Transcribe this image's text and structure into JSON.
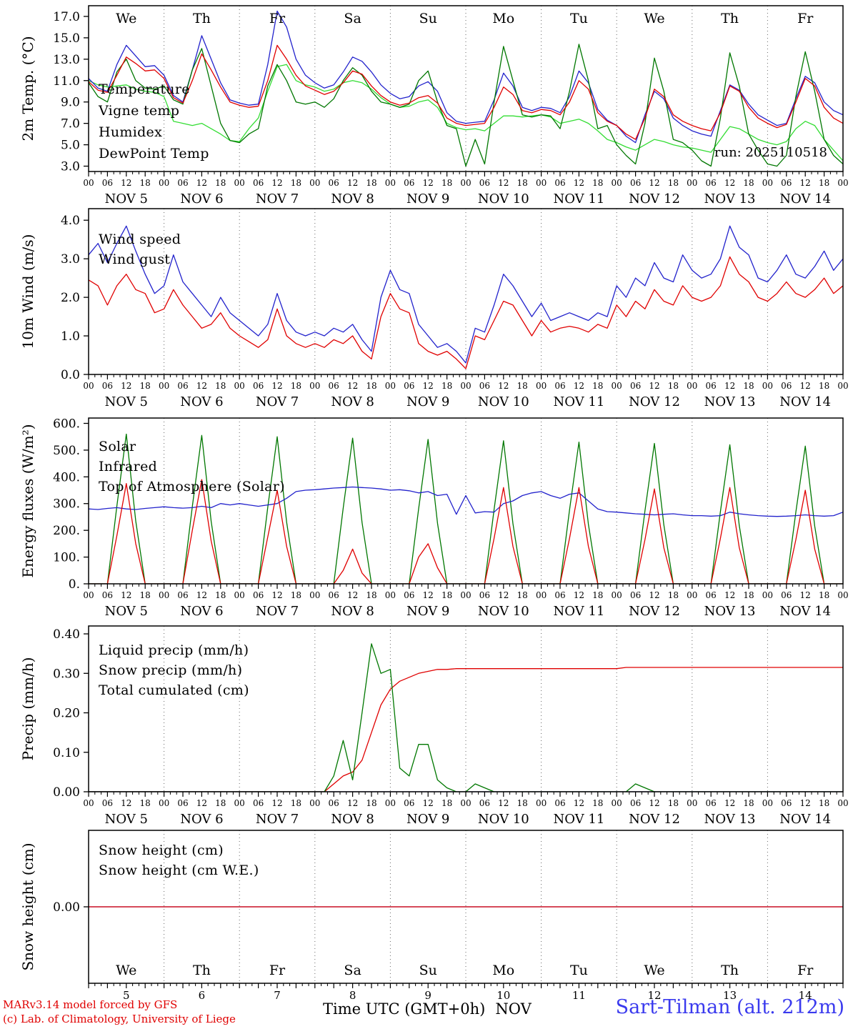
{
  "colors": {
    "red": "#e00000",
    "blue": "#2222cc",
    "dark_green": "#007700",
    "light_green": "#33dd33",
    "station_blue": "#3a3aee"
  },
  "footer": {
    "credit_line1": "MARv3.14 model forced by GFS",
    "credit_line2": "(c) Lab. of Climatology, University of Liege",
    "xaxis_title": "Time UTC (GMT+0h)",
    "month_label": "NOV",
    "station": "Sart-Tilman (alt. 212m)"
  },
  "x_axis": {
    "hours_total": 240,
    "step_hours": 3,
    "hour_label_cycle": [
      "00",
      "06",
      "12",
      "18"
    ],
    "day_labels": [
      "NOV  5",
      "NOV  6",
      "NOV  7",
      "NOV  8",
      "NOV  9",
      "NOV 10",
      "NOV 11",
      "NOV 12",
      "NOV 13",
      "NOV 14"
    ],
    "day_names": [
      "We",
      "Th",
      "Fr",
      "Sa",
      "Su",
      "Mo",
      "Tu",
      "We",
      "Th",
      "Fr"
    ],
    "weekend_days": [
      3,
      4
    ],
    "day_numbers": [
      "5",
      "6",
      "7",
      "8",
      "9",
      "10",
      "11",
      "12",
      "13",
      "14"
    ]
  },
  "chart_data": [
    {
      "type": "line",
      "ylabel": "2m Temp. (°C)",
      "ylim": [
        2.5,
        18.0
      ],
      "ytick_values": [
        3,
        5,
        7,
        9,
        11,
        13,
        15,
        17
      ],
      "ytick_labels": [
        "3.0",
        "5.0",
        "7.0",
        "9.0",
        "11.0",
        "13.0",
        "15.0",
        "17.0"
      ],
      "series": [
        {
          "name": "Temperature",
          "color": "#e00000",
          "values": [
            10.9,
            10.1,
            9.9,
            11.5,
            13.2,
            12.6,
            11.9,
            12.0,
            11.2,
            9.4,
            8.9,
            11.0,
            13.5,
            12.0,
            10.4,
            9.0,
            8.7,
            8.5,
            8.6,
            11.0,
            14.3,
            13.0,
            11.5,
            10.5,
            10.1,
            9.7,
            10.0,
            10.8,
            11.9,
            11.6,
            10.5,
            9.6,
            9.0,
            8.7,
            8.9,
            9.4,
            9.6,
            8.9,
            7.5,
            7.0,
            6.8,
            6.9,
            7.0,
            8.5,
            10.4,
            9.7,
            8.2,
            8.0,
            8.3,
            8.2,
            7.8,
            9.0,
            11.0,
            10.2,
            8.0,
            7.2,
            6.8,
            6.0,
            5.5,
            7.5,
            10.2,
            9.5,
            7.8,
            7.2,
            6.8,
            6.5,
            6.3,
            8.0,
            10.5,
            10.0,
            8.5,
            7.5,
            7.0,
            6.6,
            6.9,
            9.0,
            11.2,
            10.5,
            8.5,
            7.5,
            7.0
          ]
        },
        {
          "name": "Vigne temp",
          "color": "#007700",
          "values": [
            10.8,
            9.5,
            9.0,
            11.8,
            13.0,
            11.0,
            10.3,
            10.2,
            10.5,
            9.2,
            8.8,
            12.0,
            14.0,
            10.5,
            7.0,
            5.4,
            5.2,
            6.0,
            6.5,
            10.5,
            12.5,
            11.0,
            9.0,
            8.8,
            9.0,
            8.5,
            9.3,
            11.0,
            12.2,
            11.5,
            10.0,
            9.0,
            8.8,
            8.5,
            8.8,
            11.0,
            11.9,
            9.0,
            6.8,
            6.5,
            3.0,
            5.5,
            3.2,
            9.0,
            14.2,
            11.0,
            7.8,
            7.6,
            7.8,
            7.7,
            6.5,
            10.0,
            14.4,
            11.0,
            6.5,
            6.8,
            5.0,
            4.0,
            3.2,
            7.0,
            13.1,
            10.0,
            5.5,
            5.2,
            4.5,
            3.5,
            3.0,
            7.5,
            13.6,
            10.5,
            6.0,
            4.5,
            3.2,
            3.0,
            4.0,
            9.5,
            13.7,
            10.0,
            5.5,
            4.0,
            3.2
          ]
        },
        {
          "name": "Humidex",
          "color": "#2222cc",
          "values": [
            11.2,
            10.3,
            10.0,
            12.5,
            14.3,
            13.3,
            12.3,
            12.4,
            11.5,
            9.6,
            9.0,
            12.0,
            15.2,
            13.0,
            10.8,
            9.2,
            8.9,
            8.7,
            8.8,
            12.5,
            17.5,
            16.0,
            13.0,
            11.5,
            10.8,
            10.3,
            10.6,
            11.8,
            13.2,
            12.8,
            11.8,
            10.6,
            9.8,
            9.3,
            9.5,
            10.5,
            10.9,
            10.0,
            8.0,
            7.2,
            7.0,
            7.1,
            7.2,
            9.2,
            11.7,
            10.5,
            8.5,
            8.2,
            8.5,
            8.4,
            8.0,
            9.5,
            11.9,
            10.8,
            8.3,
            7.3,
            6.8,
            5.8,
            5.2,
            7.8,
            10.0,
            9.3,
            7.5,
            6.8,
            6.3,
            6.0,
            5.8,
            8.2,
            10.6,
            10.1,
            8.8,
            7.8,
            7.3,
            6.8,
            7.0,
            9.3,
            11.4,
            10.8,
            9.0,
            8.2,
            7.8
          ]
        },
        {
          "name": "DewPoint Temp",
          "color": "#33dd33",
          "values": [
            11.0,
            10.6,
            10.4,
            10.5,
            10.6,
            10.2,
            10.0,
            9.9,
            9.5,
            7.2,
            7.0,
            6.8,
            7.0,
            6.5,
            6.0,
            5.4,
            5.3,
            6.5,
            7.5,
            10.0,
            12.3,
            12.5,
            11.0,
            10.6,
            10.4,
            10.0,
            10.2,
            10.8,
            11.0,
            10.8,
            10.2,
            9.4,
            8.8,
            8.5,
            8.6,
            9.0,
            9.2,
            8.5,
            7.0,
            6.6,
            6.4,
            6.5,
            6.3,
            7.0,
            7.7,
            7.7,
            7.6,
            7.7,
            7.8,
            7.6,
            7.0,
            7.2,
            7.4,
            7.0,
            6.3,
            5.5,
            5.2,
            4.8,
            4.5,
            5.0,
            5.5,
            5.3,
            5.0,
            4.8,
            4.7,
            4.5,
            4.3,
            5.5,
            6.7,
            6.5,
            6.0,
            5.5,
            5.2,
            5.0,
            5.3,
            6.5,
            7.2,
            6.8,
            5.5,
            4.5,
            3.5
          ]
        }
      ],
      "annotations": [
        {
          "text": "run: 2025110518",
          "color": "#000000",
          "align": "right",
          "x_hour": 235,
          "y_value": 3.9
        }
      ]
    },
    {
      "type": "line",
      "ylabel": "10m Wind (m/s)",
      "ylim": [
        0,
        4.3
      ],
      "ytick_values": [
        0,
        1,
        2,
        3,
        4
      ],
      "ytick_labels": [
        "0.0",
        "1.0",
        "2.0",
        "3.0",
        "4.0"
      ],
      "series": [
        {
          "name": "Wind speed",
          "color": "#e00000",
          "values": [
            2.45,
            2.3,
            1.8,
            2.3,
            2.6,
            2.2,
            2.1,
            1.6,
            1.7,
            2.2,
            1.8,
            1.5,
            1.2,
            1.3,
            1.6,
            1.2,
            1.0,
            0.85,
            0.7,
            0.9,
            1.7,
            1.0,
            0.8,
            0.7,
            0.8,
            0.7,
            0.9,
            0.8,
            1.0,
            0.6,
            0.4,
            1.5,
            2.1,
            1.7,
            1.6,
            0.8,
            0.6,
            0.5,
            0.6,
            0.4,
            0.15,
            1.0,
            0.9,
            1.4,
            1.9,
            1.8,
            1.4,
            1.0,
            1.4,
            1.1,
            1.2,
            1.25,
            1.2,
            1.1,
            1.3,
            1.2,
            1.8,
            1.5,
            1.9,
            1.7,
            2.2,
            1.9,
            1.8,
            2.3,
            2.0,
            1.9,
            2.0,
            2.3,
            3.05,
            2.6,
            2.4,
            2.0,
            1.9,
            2.1,
            2.4,
            2.1,
            2.0,
            2.2,
            2.5,
            2.1,
            2.3
          ]
        },
        {
          "name": "Wind gust",
          "color": "#2222cc",
          "values": [
            3.1,
            3.4,
            2.9,
            3.4,
            3.85,
            3.2,
            2.6,
            2.1,
            2.3,
            3.1,
            2.4,
            2.1,
            1.8,
            1.5,
            2.0,
            1.6,
            1.4,
            1.2,
            1.0,
            1.3,
            2.1,
            1.4,
            1.1,
            1.0,
            1.1,
            1.0,
            1.2,
            1.1,
            1.3,
            0.9,
            0.6,
            2.0,
            2.7,
            2.2,
            2.1,
            1.3,
            1.0,
            0.7,
            0.8,
            0.6,
            0.3,
            1.2,
            1.1,
            1.8,
            2.6,
            2.3,
            1.9,
            1.5,
            1.85,
            1.4,
            1.5,
            1.6,
            1.5,
            1.4,
            1.6,
            1.5,
            2.3,
            2.0,
            2.5,
            2.3,
            2.9,
            2.5,
            2.4,
            3.1,
            2.7,
            2.5,
            2.6,
            3.0,
            3.85,
            3.3,
            3.1,
            2.5,
            2.4,
            2.7,
            3.1,
            2.6,
            2.5,
            2.8,
            3.2,
            2.7,
            3.0
          ]
        }
      ],
      "annotations": []
    },
    {
      "type": "line",
      "ylabel": "Energy fluxes (W/m²)",
      "ylim": [
        0,
        620
      ],
      "ytick_values": [
        0,
        100,
        200,
        300,
        400,
        500,
        600
      ],
      "ytick_labels": [
        "0.",
        "100.",
        "200.",
        "300.",
        "400.",
        "500.",
        "600."
      ],
      "series": [
        {
          "name": "Solar",
          "color": "#e00000",
          "values": [
            0,
            0,
            0,
            180,
            375,
            150,
            0,
            0,
            0,
            0,
            0,
            200,
            390,
            160,
            0,
            0,
            0,
            0,
            0,
            175,
            350,
            140,
            0,
            0,
            0,
            0,
            0,
            50,
            130,
            40,
            0,
            0,
            0,
            0,
            0,
            100,
            150,
            60,
            0,
            0,
            0,
            0,
            0,
            170,
            360,
            140,
            0,
            0,
            0,
            0,
            0,
            170,
            360,
            140,
            0,
            0,
            0,
            0,
            0,
            165,
            355,
            135,
            0,
            0,
            0,
            0,
            0,
            170,
            360,
            135,
            0,
            0,
            0,
            0,
            0,
            165,
            350,
            130,
            0,
            0,
            0
          ]
        },
        {
          "name": "Infrared",
          "color": "#2222cc",
          "values": [
            280,
            278,
            282,
            285,
            280,
            278,
            282,
            285,
            288,
            285,
            283,
            285,
            290,
            285,
            300,
            295,
            300,
            295,
            290,
            295,
            300,
            320,
            345,
            350,
            352,
            355,
            358,
            360,
            362,
            360,
            358,
            355,
            350,
            352,
            348,
            340,
            345,
            330,
            335,
            260,
            330,
            265,
            270,
            268,
            300,
            310,
            330,
            340,
            345,
            330,
            320,
            335,
            340,
            310,
            280,
            270,
            268,
            265,
            262,
            260,
            258,
            260,
            262,
            258,
            255,
            255,
            253,
            255,
            268,
            262,
            258,
            255,
            253,
            252,
            253,
            255,
            258,
            255,
            253,
            255,
            268
          ]
        },
        {
          "name": "Top of Atmosphere (Solar)",
          "color": "#007700",
          "values": [
            0,
            0,
            0,
            291,
            560,
            235,
            0,
            0,
            0,
            0,
            0,
            289,
            555,
            233,
            0,
            0,
            0,
            0,
            0,
            286,
            550,
            231,
            0,
            0,
            0,
            0,
            0,
            283,
            545,
            229,
            0,
            0,
            0,
            0,
            0,
            281,
            540,
            227,
            0,
            0,
            0,
            0,
            0,
            278,
            535,
            225,
            0,
            0,
            0,
            0,
            0,
            276,
            530,
            223,
            0,
            0,
            0,
            0,
            0,
            273,
            525,
            221,
            0,
            0,
            0,
            0,
            0,
            270,
            520,
            218,
            0,
            0,
            0,
            0,
            0,
            268,
            515,
            216,
            0,
            0,
            0
          ]
        }
      ],
      "annotations": []
    },
    {
      "type": "line",
      "ylabel": "Precip (mm/h)",
      "ylim": [
        0,
        0.42
      ],
      "ytick_values": [
        0,
        0.1,
        0.2,
        0.3,
        0.4
      ],
      "ytick_labels": [
        "0.00",
        "0.10",
        "0.20",
        "0.30",
        "0.40"
      ],
      "series": [
        {
          "name": "Liquid precip (mm/h)",
          "color": "#007700",
          "values": [
            0,
            0,
            0,
            0,
            0,
            0,
            0,
            0,
            0,
            0,
            0,
            0,
            0,
            0,
            0,
            0,
            0,
            0,
            0,
            0,
            0,
            0,
            0,
            0,
            0,
            0,
            0.04,
            0.13,
            0.03,
            0.2,
            0.375,
            0.3,
            0.31,
            0.06,
            0.04,
            0.12,
            0.12,
            0.03,
            0.01,
            0,
            0,
            0.02,
            0.01,
            0,
            0,
            0,
            0,
            0,
            0,
            0,
            0,
            0,
            0,
            0,
            0,
            0,
            0,
            0,
            0.02,
            0.01,
            0,
            0,
            0,
            0,
            0,
            0,
            0,
            0,
            0,
            0,
            0,
            0,
            0,
            0,
            0,
            0,
            0,
            0,
            0,
            0,
            0,
            0
          ]
        },
        {
          "name": "Snow precip (mm/h)",
          "color": "#2222cc",
          "constant": 0
        },
        {
          "name": "Total cumulated (cm)",
          "color": "#e00000",
          "values": [
            0,
            0,
            0,
            0,
            0,
            0,
            0,
            0,
            0,
            0,
            0,
            0,
            0,
            0,
            0,
            0,
            0,
            0,
            0,
            0,
            0,
            0,
            0,
            0,
            0,
            0,
            0.02,
            0.04,
            0.05,
            0.08,
            0.15,
            0.22,
            0.26,
            0.28,
            0.29,
            0.3,
            0.305,
            0.31,
            0.31,
            0.312,
            0.312,
            0.312,
            0.312,
            0.312,
            0.312,
            0.312,
            0.312,
            0.312,
            0.312,
            0.312,
            0.312,
            0.312,
            0.312,
            0.312,
            0.312,
            0.312,
            0.312,
            0.315,
            0.315,
            0.315,
            0.315,
            0.315,
            0.315,
            0.315,
            0.315,
            0.315,
            0.315,
            0.315,
            0.315,
            0.315,
            0.315,
            0.315,
            0.315,
            0.315,
            0.315,
            0.315,
            0.315,
            0.315,
            0.315,
            0.315,
            0.315
          ]
        }
      ],
      "annotations": []
    },
    {
      "type": "line",
      "ylabel": "Snow height (cm)",
      "ylim": [
        -1,
        1
      ],
      "ytick_values": [
        0
      ],
      "ytick_labels": [
        "0.00"
      ],
      "series": [
        {
          "name": "Snow height (cm)",
          "color": "#e00000",
          "constant": 0
        },
        {
          "name": "Snow height (cm W.E.)",
          "color": "#2222cc",
          "constant": 0
        }
      ],
      "annotations": []
    }
  ]
}
